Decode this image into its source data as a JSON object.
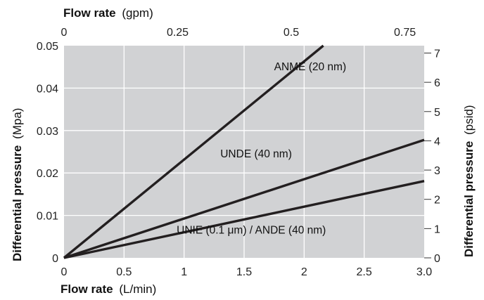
{
  "chart_data": {
    "type": "line",
    "x_bottom": {
      "title_bold": "Flow rate",
      "title_unit": "(L/min)",
      "range": [
        0,
        3.0
      ],
      "ticks": [
        0,
        0.5,
        1,
        1.5,
        2,
        2.5,
        3.0
      ],
      "tick_labels": [
        "0",
        "0.5",
        "1",
        "1.5",
        "2",
        "2.5",
        "3.0"
      ]
    },
    "x_top": {
      "title_bold": "Flow rate",
      "title_unit": "(gpm)",
      "range": [
        0,
        0.7925
      ],
      "ticks": [
        0,
        0.25,
        0.5,
        0.75
      ],
      "tick_labels": [
        "0",
        "0.25",
        "0.5",
        "0.75"
      ]
    },
    "y_left": {
      "title_bold": "Differential pressure",
      "title_unit": "(Mpa)",
      "range": [
        0,
        0.05
      ],
      "ticks": [
        0,
        0.01,
        0.02,
        0.03,
        0.04,
        0.05
      ],
      "tick_labels": [
        "0",
        "0.01",
        "0.02",
        "0.03",
        "0.04",
        "0.05"
      ]
    },
    "y_right": {
      "title_bold": "Differential pressure",
      "title_unit": "(psid)",
      "range": [
        0,
        7.252
      ],
      "ticks": [
        0,
        1,
        2,
        3,
        4,
        5,
        6,
        7
      ],
      "tick_labels": [
        "0",
        "1",
        "2",
        "3",
        "4",
        "5",
        "6",
        "7"
      ]
    },
    "grid": true,
    "series": [
      {
        "name": "ANME (20 nm)",
        "x": [
          0,
          2.16
        ],
        "y": [
          0,
          0.05
        ],
        "label_at": [
          2.05,
          0.0442
        ]
      },
      {
        "name": "UNDE (40 nm)",
        "x": [
          0,
          3.0
        ],
        "y": [
          0,
          0.0278
        ],
        "label_at": [
          1.6,
          0.0237
        ]
      },
      {
        "name": "UNIE (0.1 μm) / ANDE (40 nm)",
        "x": [
          0,
          3.0
        ],
        "y": [
          0,
          0.0181
        ],
        "label_at": [
          1.56,
          0.0057
        ]
      }
    ]
  }
}
